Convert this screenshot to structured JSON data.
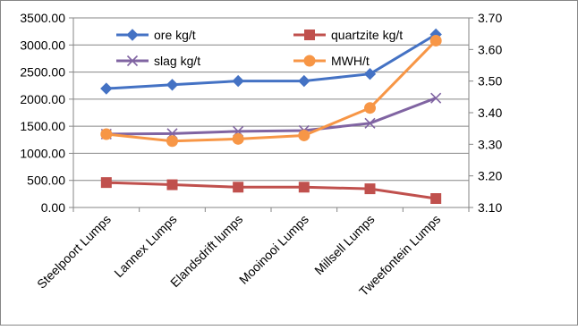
{
  "chart_data": {
    "type": "line",
    "categories": [
      "Steelpoort Lumps",
      "Lannex Lumps",
      "Elandsdrift lumps",
      "Mooinooi Lumps",
      "Millsell Lumps",
      "Tweefontein Lumps"
    ],
    "y_left": {
      "range": [
        0,
        3500
      ],
      "ticks": [
        0,
        500,
        1000,
        1500,
        2000,
        2500,
        3000,
        3500
      ],
      "tick_labels": [
        "0.00",
        "500.00",
        "1000.00",
        "1500.00",
        "2000.00",
        "2500.00",
        "3000.00",
        "3500.00"
      ]
    },
    "y_right": {
      "range": [
        3.1,
        3.7
      ],
      "ticks": [
        3.1,
        3.2,
        3.3,
        3.4,
        3.5,
        3.6,
        3.7
      ],
      "tick_labels": [
        "3.10",
        "3.20",
        "3.30",
        "3.40",
        "3.50",
        "3.60",
        "3.70"
      ]
    },
    "series": [
      {
        "name": "ore kg/t",
        "axis": "left",
        "color": "#4472C4",
        "marker": "diamond",
        "values": [
          2195,
          2265,
          2335,
          2335,
          2465,
          3195
        ]
      },
      {
        "name": "quartzite kg/t",
        "axis": "left",
        "color": "#C0504D",
        "marker": "square",
        "values": [
          460,
          420,
          375,
          375,
          345,
          165
        ]
      },
      {
        "name": "slag kg/t",
        "axis": "left",
        "color": "#8064A2",
        "marker": "x",
        "values": [
          1355,
          1365,
          1405,
          1420,
          1555,
          2020
        ]
      },
      {
        "name": "MWH/t",
        "axis": "right",
        "color": "#F79646",
        "marker": "circle",
        "values": [
          3.332,
          3.31,
          3.317,
          3.328,
          3.415,
          3.628
        ]
      }
    ],
    "legend": {
      "placement": "top-left, inside plot, two columns"
    },
    "grid": {
      "horizontal": true,
      "vertical": false
    }
  }
}
